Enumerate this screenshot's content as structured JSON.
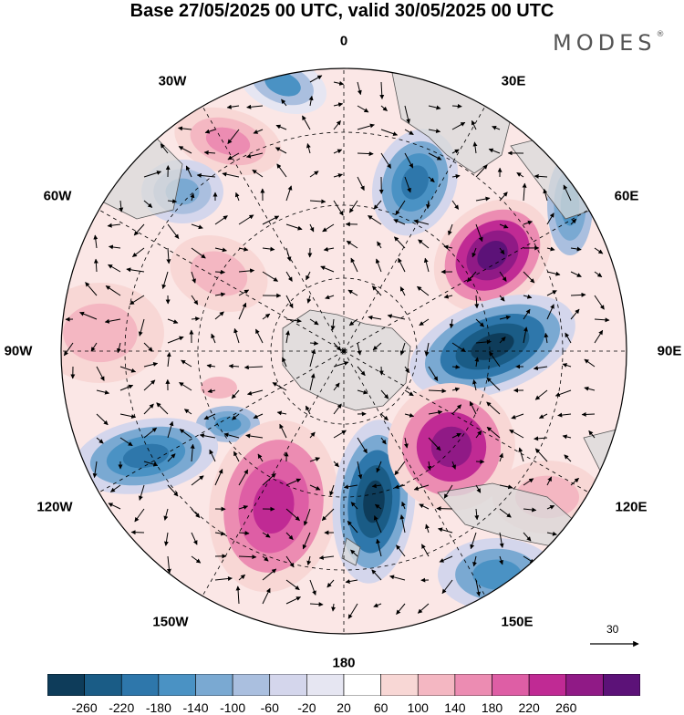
{
  "title": "Base 27/05/2025 00 UTC, valid 30/05/2025 00 UTC",
  "brand": "MODES",
  "brand_mark": "®",
  "longitude_labels": {
    "lon_0": "0",
    "lon_30e": "30E",
    "lon_60e": "60E",
    "lon_90e": "90E",
    "lon_120e": "120E",
    "lon_150e": "150E",
    "lon_180": "180",
    "lon_150w": "150W",
    "lon_120w": "120W",
    "lon_90w": "90W",
    "lon_60w": "60W",
    "lon_30w": "30W"
  },
  "vector_scale": {
    "label": "30"
  },
  "colorbar": {
    "ticks": [
      "-260",
      "-220",
      "-180",
      "-140",
      "-100",
      "-60",
      "-20",
      "20",
      "60",
      "100",
      "140",
      "180",
      "220",
      "260"
    ],
    "colors": [
      "#0e3c5a",
      "#1a5c86",
      "#2e77ab",
      "#4a92c4",
      "#7aa9d2",
      "#aabfdf",
      "#d4d6ec",
      "#e6e6f2",
      "#ffffff",
      "#f8d7d5",
      "#f4b7c2",
      "#ec8cb2",
      "#de5ea5",
      "#c02a94",
      "#901a86",
      "#5c1278"
    ]
  },
  "colors": {
    "land": "#d9d9d9",
    "coast": "#555555",
    "grid": "#000000"
  },
  "map_features": {
    "projection": "south-polar-stereographic",
    "contours": "shaded anomaly",
    "vectors": "wind arrows"
  }
}
